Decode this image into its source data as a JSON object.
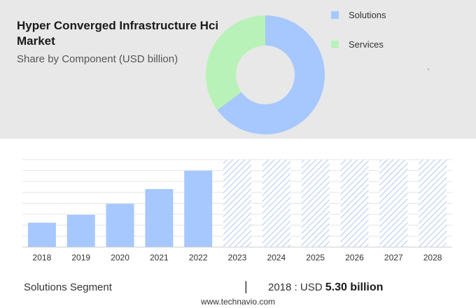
{
  "header": {
    "title": "Hyper Converged Infrastructure Hci Market",
    "subtitle": "Share by Component (USD billion)"
  },
  "chart_data": [
    {
      "type": "pie",
      "style": "donut",
      "categories": [
        "Solutions",
        "Services"
      ],
      "values": [
        65,
        35
      ],
      "colors": [
        "#a6c8ff",
        "#b8f2b8"
      ],
      "legend": "top-right"
    },
    {
      "type": "bar",
      "categories": [
        "2018",
        "2019",
        "2020",
        "2021",
        "2022",
        "2023",
        "2024",
        "2025",
        "2026",
        "2027",
        "2028"
      ],
      "values": [
        5.3,
        7.0,
        9.4,
        12.6,
        16.6,
        null,
        null,
        null,
        null,
        null,
        null
      ],
      "forecast_categories": [
        "2023",
        "2024",
        "2025",
        "2026",
        "2027",
        "2028"
      ],
      "ylim": [
        0,
        19
      ],
      "grid": true,
      "colors": {
        "bar": "#a6c8ff",
        "forecast_hatch": "#b7cdf2"
      }
    }
  ],
  "footer": {
    "segment": "Solutions Segment",
    "separator": "|",
    "year_label": "2018 : USD",
    "value": "5.30 billion",
    "source": "www.technavio.com"
  }
}
